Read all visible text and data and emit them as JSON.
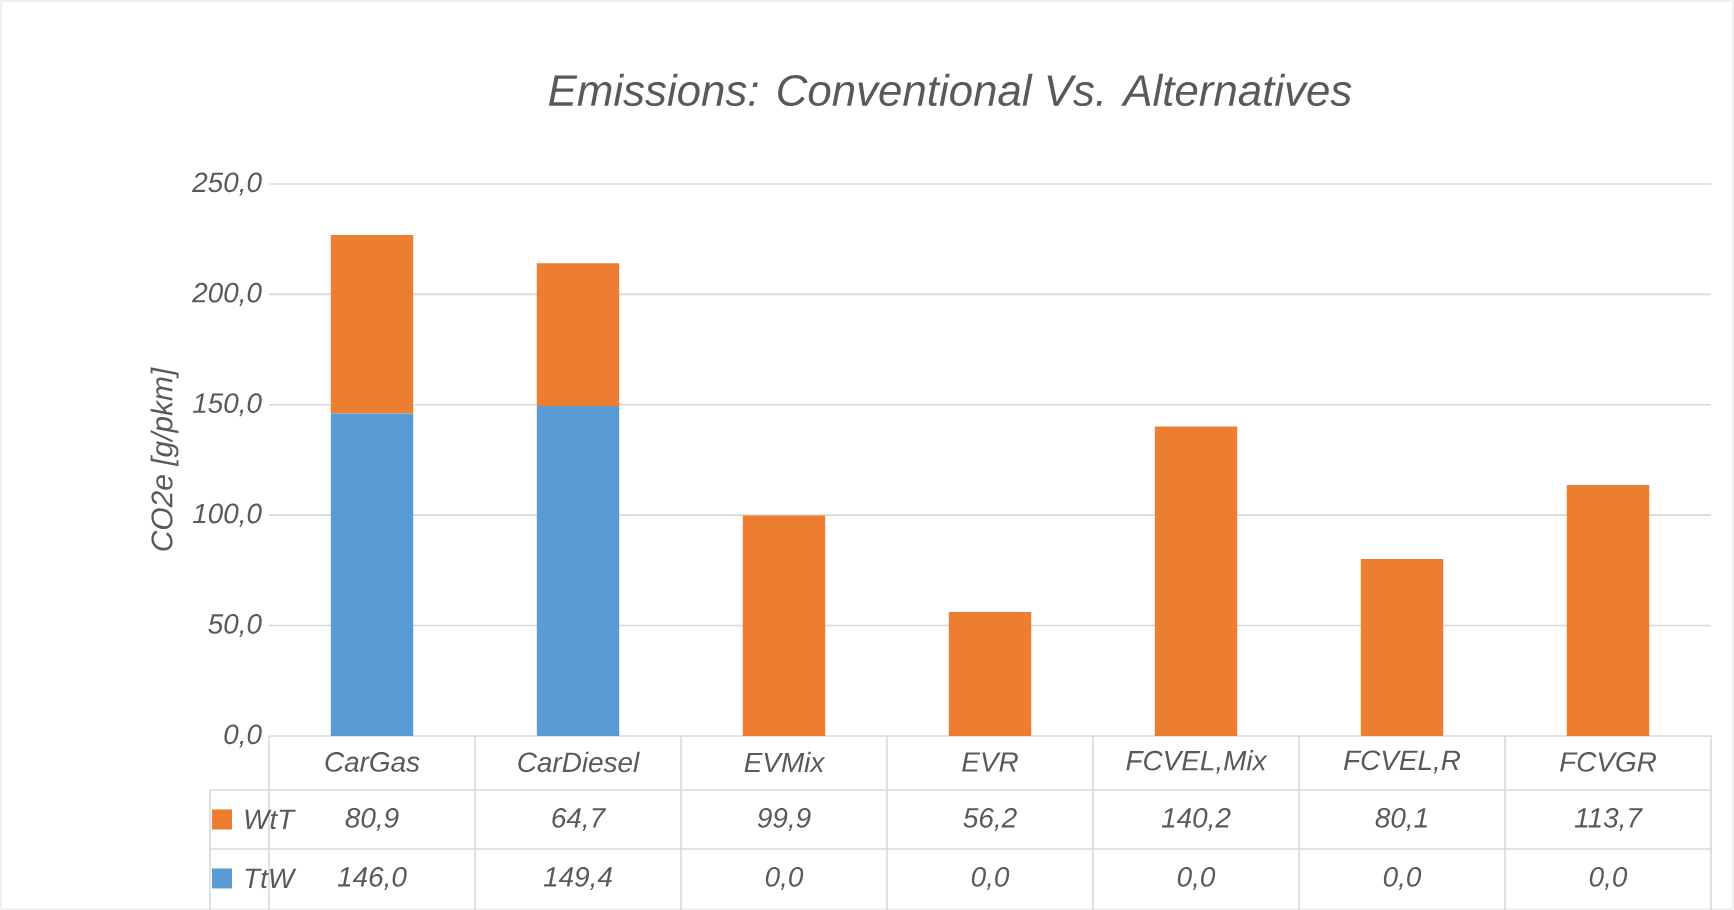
{
  "chart_data": {
    "type": "bar",
    "title": "Emissions: Conventional Vs. Alternatives",
    "ylabel": "CO2e [g/pkm]",
    "categories": [
      "CarGas",
      "CarDiesel",
      "EVMix",
      "EVR",
      "FCVEL,Mix",
      "FCVEL,R",
      "FCVGR"
    ],
    "stacked": true,
    "series": [
      {
        "name": "TtW",
        "color": "#5b9bd5",
        "values": [
          146.0,
          149.4,
          0.0,
          0.0,
          0.0,
          0.0,
          0.0
        ],
        "value_labels": [
          "146,0",
          "149,4",
          "0,0",
          "0,0",
          "0,0",
          "0,0",
          "0,0"
        ]
      },
      {
        "name": "WtT",
        "color": "#ed7d31",
        "values": [
          80.9,
          64.7,
          99.9,
          56.2,
          140.2,
          80.1,
          113.7
        ],
        "value_labels": [
          "80,9",
          "64,7",
          "99,9",
          "56,2",
          "140,2",
          "80,1",
          "113,7"
        ]
      }
    ],
    "ylim": [
      0,
      250
    ],
    "yticks": [
      {
        "value": 0,
        "label": "0,0"
      },
      {
        "value": 50,
        "label": "50,0"
      },
      {
        "value": 100,
        "label": "100,0"
      },
      {
        "value": 150,
        "label": "150,0"
      },
      {
        "value": 200,
        "label": "200,0"
      },
      {
        "value": 250,
        "label": "250,0"
      }
    ],
    "grid": "y",
    "legend": "bottom"
  }
}
